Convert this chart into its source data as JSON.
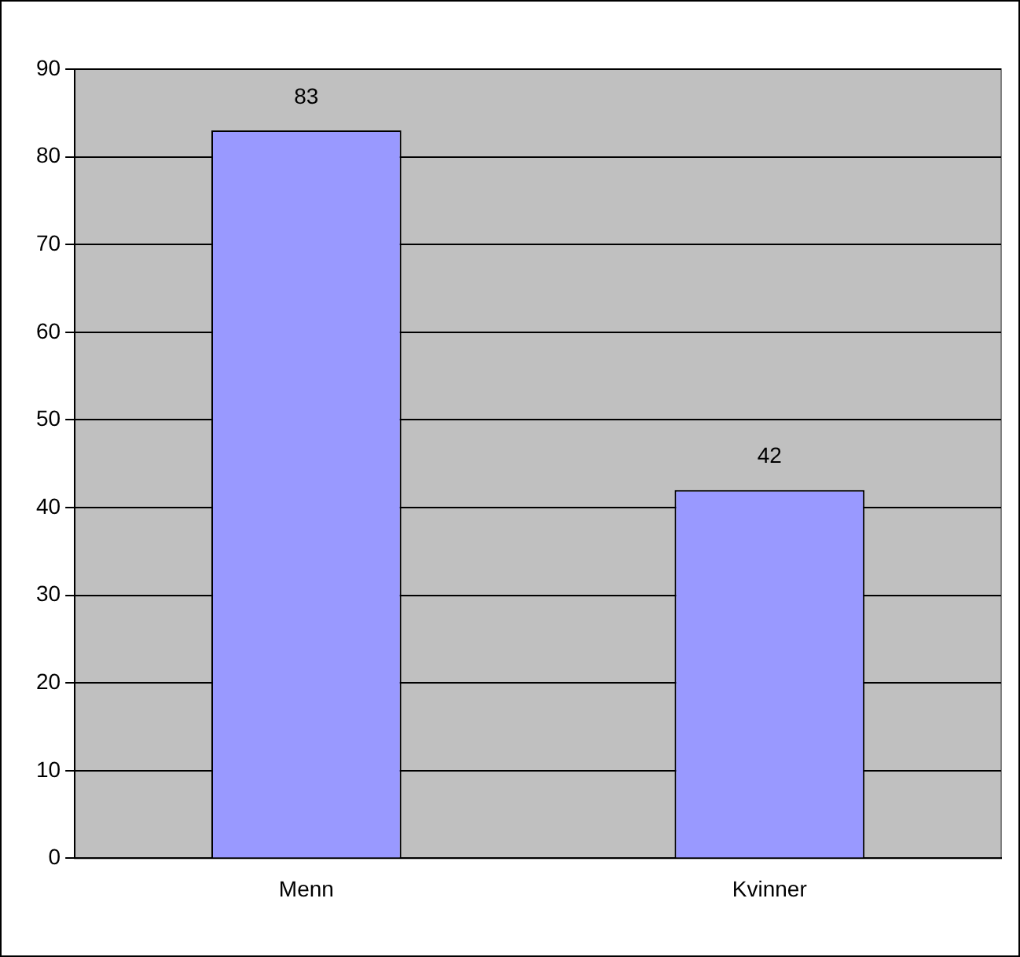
{
  "chart_data": {
    "type": "bar",
    "categories": [
      "Menn",
      "Kvinner"
    ],
    "values": [
      83,
      42
    ],
    "color": "#9999ff",
    "ylim": [
      0,
      90
    ],
    "yticks": [
      0,
      10,
      20,
      30,
      40,
      50,
      60,
      70,
      80,
      90
    ],
    "grid": "y",
    "data_labels": true,
    "legend": false
  }
}
